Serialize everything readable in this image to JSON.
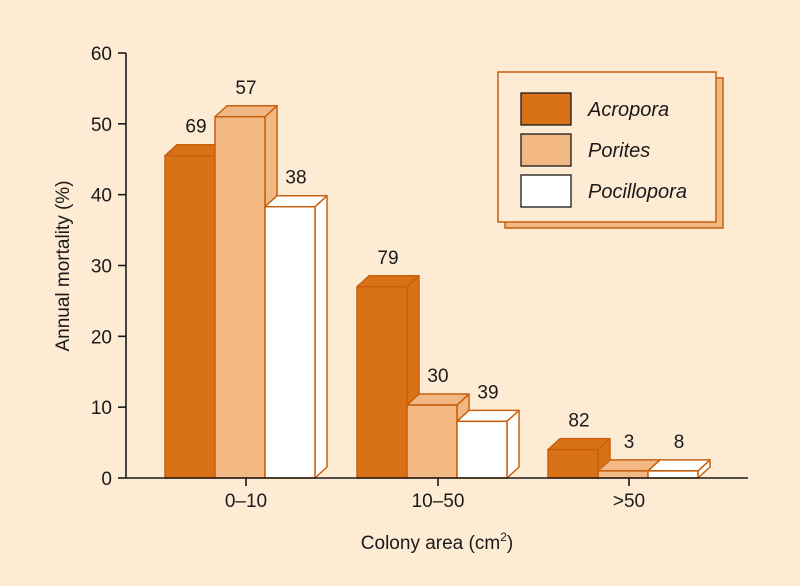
{
  "chart_data": {
    "type": "bar",
    "title": "",
    "xlabel": "Colony area (cm",
    "xlabel_sup": "2",
    "xlabel_end": ")",
    "ylabel": "Annual mortality (%)",
    "ylim": [
      0,
      60
    ],
    "yticks": [
      "0",
      "10",
      "20",
      "30",
      "40",
      "50",
      "60"
    ],
    "categories": [
      "0–10",
      "10–50",
      ">50"
    ],
    "series": [
      {
        "name": "Acropora",
        "color": "#d97116",
        "values": [
          45.5,
          27,
          4
        ],
        "labels": [
          "69",
          "79",
          "82"
        ]
      },
      {
        "name": "Porites",
        "color": "#f1b883",
        "values": [
          51,
          10.3,
          1
        ],
        "labels": [
          "57",
          "30",
          "3"
        ]
      },
      {
        "name": "Pocillopora",
        "color": "#ffffff",
        "values": [
          38.3,
          8,
          1
        ],
        "labels": [
          "38",
          "39",
          "8"
        ]
      }
    ],
    "legend": "top-right",
    "grid": false,
    "colors": {
      "background": "#fdebd3",
      "stroke": "#c8600f",
      "axis": "#1a1a1a",
      "text": "#1a1a1a"
    }
  }
}
